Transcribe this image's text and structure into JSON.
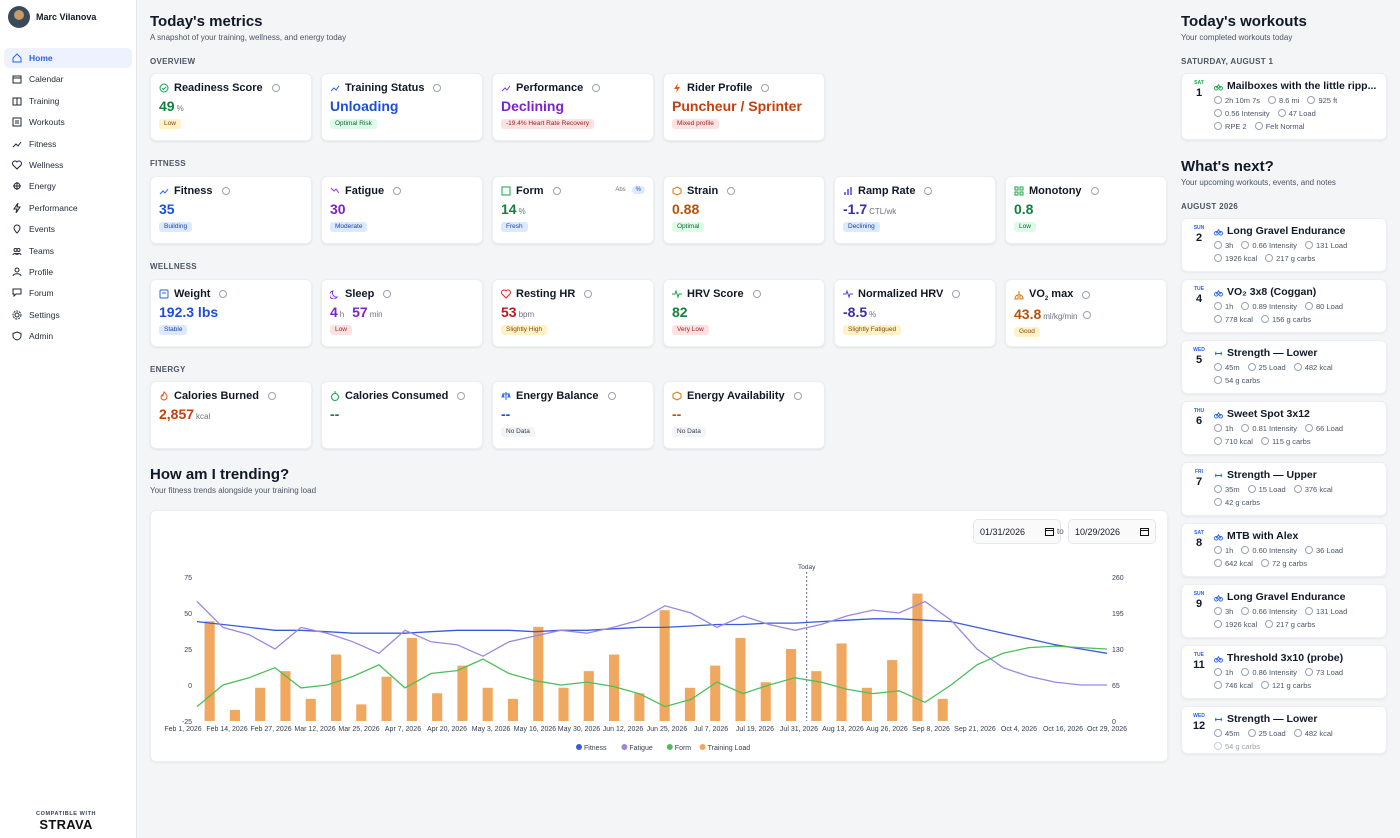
{
  "user": {
    "name": "Marc Vilanova"
  },
  "nav": [
    {
      "label": "Home",
      "icon": "home-icon"
    },
    {
      "label": "Calendar",
      "icon": "calendar-icon"
    },
    {
      "label": "Training",
      "icon": "book-icon"
    },
    {
      "label": "Workouts",
      "icon": "workouts-icon"
    },
    {
      "label": "Fitness",
      "icon": "trend-icon"
    },
    {
      "label": "Wellness",
      "icon": "heart-icon"
    },
    {
      "label": "Energy",
      "icon": "energy-icon"
    },
    {
      "label": "Performance",
      "icon": "bolt-icon"
    },
    {
      "label": "Events",
      "icon": "pin-icon"
    },
    {
      "label": "Teams",
      "icon": "teams-icon"
    },
    {
      "label": "Profile",
      "icon": "user-icon"
    },
    {
      "label": "Forum",
      "icon": "forum-icon"
    },
    {
      "label": "Settings",
      "icon": "gear-icon"
    },
    {
      "label": "Admin",
      "icon": "shield-icon"
    }
  ],
  "strava": {
    "compat": "COMPATIBLE WITH",
    "brand": "STRAVA"
  },
  "page": {
    "title": "Today's metrics",
    "subtitle": "A snapshot of your training, wellness, and energy today"
  },
  "sections": {
    "overview": "OVERVIEW",
    "fitness": "FITNESS",
    "wellness": "WELLNESS",
    "energy": "ENERGY"
  },
  "cards": {
    "readiness": {
      "title": "Readiness Score",
      "value": "49",
      "unit": "%",
      "badge": "Low"
    },
    "training_status": {
      "title": "Training Status",
      "value": "Unloading",
      "badge": "Optimal Risk"
    },
    "performance": {
      "title": "Performance",
      "value": "Declining",
      "badge": "-19.4% Heart Rate Recovery"
    },
    "rider_profile": {
      "title": "Rider Profile",
      "value": "Puncheur / Sprinter",
      "badge": "Mixed profile"
    },
    "fitness": {
      "title": "Fitness",
      "value": "35",
      "badge": "Building"
    },
    "fatigue": {
      "title": "Fatigue",
      "value": "30",
      "badge": "Moderate"
    },
    "form": {
      "title": "Form",
      "value": "14",
      "unit": "%",
      "badge": "Fresh",
      "toggle_abs": "Abs",
      "toggle_pct": "%"
    },
    "strain": {
      "title": "Strain",
      "value": "0.88",
      "badge": "Optimal"
    },
    "ramp_rate": {
      "title": "Ramp Rate",
      "value": "-1.7",
      "unit": "CTL/wk",
      "badge": "Declining"
    },
    "monotony": {
      "title": "Monotony",
      "value": "0.8",
      "badge": "Low"
    },
    "weight": {
      "title": "Weight",
      "value": "192.3 lbs",
      "badge": "Stable"
    },
    "sleep": {
      "title": "Sleep",
      "h": "4",
      "h_unit": "h",
      "m": "57",
      "m_unit": "min",
      "badge": "Low"
    },
    "resting_hr": {
      "title": "Resting HR",
      "value": "53",
      "unit": "bpm",
      "badge": "Slightly High"
    },
    "hrv": {
      "title": "HRV Score",
      "value": "82",
      "badge": "Very Low"
    },
    "nhrv": {
      "title": "Normalized HRV",
      "value": "-8.5",
      "unit": "%",
      "badge": "Slightly Fatigued"
    },
    "vo2": {
      "title_a": "VO",
      "title_sub": "2",
      "title_b": " max",
      "value": "43.8",
      "unit": "ml/kg/min",
      "badge": "Good"
    },
    "cal_burned": {
      "title": "Calories Burned",
      "value": "2,857",
      "unit": "kcal"
    },
    "cal_consumed": {
      "title": "Calories Consumed",
      "value": "--"
    },
    "energy_balance": {
      "title": "Energy Balance",
      "value": "--",
      "badge": "No Data"
    },
    "energy_avail": {
      "title": "Energy Availability",
      "value": "--",
      "badge": "No Data"
    }
  },
  "trend": {
    "title": "How am I trending?",
    "subtitle": "Your fitness trends alongside your training load",
    "date_from": "01/31/2026",
    "to": "to",
    "date_to": "10/29/2026"
  },
  "colors": {
    "accent": "#2563eb",
    "fitness": "#3b5bdb",
    "fatigue": "#9b87e0",
    "form": "#4cbf5a",
    "load": "#f0a860"
  },
  "chart_data": {
    "type": "line",
    "today_label": "Today",
    "x_ticks": [
      "Feb 1, 2026",
      "Feb 14, 2026",
      "Feb 27, 2026",
      "Mar 12, 2026",
      "Mar 25, 2026",
      "Apr 7, 2026",
      "Apr 20, 2026",
      "May 3, 2026",
      "May 16, 2026",
      "May 30, 2026",
      "Jun 12, 2026",
      "Jun 25, 2026",
      "Jul 7, 2026",
      "Jul 19, 2026",
      "Jul 31, 2026",
      "Aug 13, 2026",
      "Aug 26, 2026",
      "Sep 8, 2026",
      "Sep 21, 2026",
      "Oct 4, 2026",
      "Oct 16, 2026",
      "Oct 29, 2026"
    ],
    "y_left_ticks": [
      "75",
      "50",
      "25",
      "0",
      "-25"
    ],
    "y_right_ticks": [
      "260",
      "195",
      "130",
      "65",
      "0"
    ],
    "ylim_left": [
      -25,
      75
    ],
    "ylim_right": [
      0,
      260
    ],
    "series": [
      {
        "name": "Fitness",
        "axis": "left",
        "values": [
          44,
          42,
          40,
          38,
          38,
          37,
          36,
          36,
          36,
          37,
          38,
          38,
          38,
          37,
          38,
          38,
          39,
          40,
          40,
          41,
          42,
          42,
          43,
          43,
          44,
          45,
          46,
          46,
          45,
          44,
          40,
          36,
          32,
          28,
          25,
          22
        ]
      },
      {
        "name": "Fatigue",
        "axis": "left",
        "values": [
          58,
          40,
          35,
          25,
          40,
          36,
          30,
          22,
          38,
          30,
          28,
          20,
          30,
          34,
          38,
          36,
          40,
          45,
          55,
          50,
          40,
          48,
          42,
          38,
          42,
          48,
          52,
          50,
          58,
          45,
          25,
          12,
          6,
          2,
          0,
          0
        ]
      },
      {
        "name": "Form",
        "axis": "left",
        "values": [
          -15,
          0,
          5,
          12,
          -2,
          0,
          6,
          14,
          -2,
          8,
          10,
          18,
          8,
          3,
          0,
          2,
          -1,
          -6,
          -15,
          -10,
          2,
          -6,
          0,
          5,
          2,
          -3,
          -6,
          -4,
          -12,
          0,
          14,
          22,
          26,
          27,
          26,
          25
        ]
      },
      {
        "name": "Training Load",
        "axis": "right",
        "values": [
          180,
          20,
          60,
          90,
          40,
          120,
          30,
          80,
          150,
          50,
          100,
          60,
          40,
          170,
          60,
          90,
          120,
          50,
          200,
          60,
          100,
          150,
          70,
          130,
          90,
          140,
          60,
          110,
          230,
          40,
          0,
          0,
          0,
          0,
          0,
          0
        ]
      }
    ],
    "legend": "bottom"
  },
  "right": {
    "today_title": "Today's workouts",
    "today_sub": "Your completed workouts today",
    "today_date": "SATURDAY, AUGUST 1",
    "today_workout": {
      "dow": "SAT",
      "day": "1",
      "title": "Mailboxes with the little ripp...",
      "m1": [
        "2h 10m 7s",
        "8.6 mi",
        "925 ft"
      ],
      "m2": [
        "0.56 Intensity",
        "47 Load"
      ],
      "m3": [
        "RPE 2",
        "Felt Normal"
      ]
    },
    "next_title": "What's next?",
    "next_sub": "Your upcoming workouts, events, and notes",
    "month": "AUGUST 2026",
    "workouts": [
      {
        "dow": "SUN",
        "day": "2",
        "title": "Long Gravel Endurance",
        "m1": [
          "3h",
          "0.66 Intensity",
          "131 Load"
        ],
        "m2": [
          "1926 kcal",
          "217 g carbs"
        ]
      },
      {
        "dow": "TUE",
        "day": "4",
        "title": "VO₂ 3x8 (Coggan)",
        "m1": [
          "1h",
          "0.89 Intensity",
          "80 Load"
        ],
        "m2": [
          "778 kcal",
          "156 g carbs"
        ]
      },
      {
        "dow": "WED",
        "day": "5",
        "title": "Strength — Lower",
        "m1": [
          "45m",
          "25 Load",
          "482 kcal"
        ],
        "m2": [
          "54 g carbs"
        ]
      },
      {
        "dow": "THU",
        "day": "6",
        "title": "Sweet Spot 3x12",
        "m1": [
          "1h",
          "0.81 Intensity",
          "66 Load"
        ],
        "m2": [
          "710 kcal",
          "115 g carbs"
        ]
      },
      {
        "dow": "FRI",
        "day": "7",
        "title": "Strength — Upper",
        "m1": [
          "35m",
          "15 Load",
          "376 kcal"
        ],
        "m2": [
          "42 g carbs"
        ]
      },
      {
        "dow": "SAT",
        "day": "8",
        "title": "MTB with Alex",
        "m1": [
          "1h",
          "0.60 Intensity",
          "36 Load"
        ],
        "m2": [
          "642 kcal",
          "72 g carbs"
        ]
      },
      {
        "dow": "SUN",
        "day": "9",
        "title": "Long Gravel Endurance",
        "m1": [
          "3h",
          "0.66 Intensity",
          "131 Load"
        ],
        "m2": [
          "1926 kcal",
          "217 g carbs"
        ]
      },
      {
        "dow": "TUE",
        "day": "11",
        "title": "Threshold 3x10 (probe)",
        "m1": [
          "1h",
          "0.86 Intensity",
          "73 Load"
        ],
        "m2": [
          "746 kcal",
          "121 g carbs"
        ]
      },
      {
        "dow": "WED",
        "day": "12",
        "title": "Strength — Lower",
        "m1": [
          "45m",
          "25 Load",
          "482 kcal"
        ],
        "m2": [
          "54 g carbs"
        ]
      }
    ]
  }
}
